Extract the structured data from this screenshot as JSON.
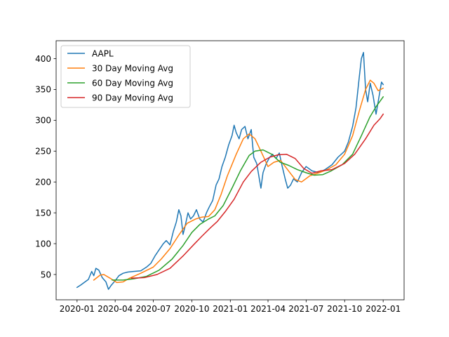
{
  "chart_data": {
    "type": "line",
    "title": "",
    "xlabel": "",
    "ylabel": "",
    "x_tick_labels": [
      "2020-01",
      "2020-04",
      "2020-07",
      "2020-10",
      "2021-01",
      "2021-04",
      "2021-07",
      "2021-10",
      "2022-01"
    ],
    "y_ticks": [
      50,
      100,
      150,
      200,
      250,
      300,
      350,
      400
    ],
    "xlim": [
      "2019-11-12",
      "2022-02-20"
    ],
    "ylim": [
      9,
      429
    ],
    "grid": false,
    "legend_position": "upper left",
    "series": [
      {
        "name": "AAPL",
        "color": "#1f77b4",
        "points": [
          [
            "2020-01-01",
            29
          ],
          [
            "2020-01-10",
            33
          ],
          [
            "2020-01-20",
            38
          ],
          [
            "2020-01-28",
            42
          ],
          [
            "2020-02-05",
            55
          ],
          [
            "2020-02-10",
            48
          ],
          [
            "2020-02-15",
            60
          ],
          [
            "2020-02-22",
            57
          ],
          [
            "2020-03-01",
            45
          ],
          [
            "2020-03-10",
            38
          ],
          [
            "2020-03-16",
            26
          ],
          [
            "2020-03-22",
            32
          ],
          [
            "2020-04-01",
            40
          ],
          [
            "2020-04-10",
            48
          ],
          [
            "2020-04-20",
            52
          ],
          [
            "2020-05-01",
            54
          ],
          [
            "2020-05-15",
            55
          ],
          [
            "2020-06-01",
            56
          ],
          [
            "2020-06-15",
            62
          ],
          [
            "2020-06-25",
            68
          ],
          [
            "2020-07-05",
            80
          ],
          [
            "2020-07-15",
            90
          ],
          [
            "2020-07-25",
            100
          ],
          [
            "2020-08-01",
            105
          ],
          [
            "2020-08-10",
            98
          ],
          [
            "2020-08-18",
            120
          ],
          [
            "2020-08-25",
            135
          ],
          [
            "2020-08-31",
            155
          ],
          [
            "2020-09-05",
            145
          ],
          [
            "2020-09-10",
            115
          ],
          [
            "2020-09-15",
            128
          ],
          [
            "2020-09-22",
            150
          ],
          [
            "2020-09-28",
            140
          ],
          [
            "2020-10-05",
            145
          ],
          [
            "2020-10-12",
            155
          ],
          [
            "2020-10-20",
            140
          ],
          [
            "2020-10-28",
            135
          ],
          [
            "2020-11-05",
            150
          ],
          [
            "2020-11-12",
            160
          ],
          [
            "2020-11-20",
            170
          ],
          [
            "2020-11-28",
            195
          ],
          [
            "2020-12-05",
            205
          ],
          [
            "2020-12-12",
            225
          ],
          [
            "2020-12-20",
            240
          ],
          [
            "2020-12-28",
            260
          ],
          [
            "2021-01-05",
            275
          ],
          [
            "2021-01-10",
            292
          ],
          [
            "2021-01-15",
            280
          ],
          [
            "2021-01-22",
            270
          ],
          [
            "2021-01-28",
            285
          ],
          [
            "2021-02-05",
            290
          ],
          [
            "2021-02-12",
            270
          ],
          [
            "2021-02-20",
            285
          ],
          [
            "2021-02-26",
            240
          ],
          [
            "2021-03-05",
            230
          ],
          [
            "2021-03-10",
            210
          ],
          [
            "2021-03-15",
            190
          ],
          [
            "2021-03-20",
            215
          ],
          [
            "2021-03-28",
            230
          ],
          [
            "2021-04-05",
            240
          ],
          [
            "2021-04-12",
            245
          ],
          [
            "2021-04-20",
            238
          ],
          [
            "2021-04-28",
            247
          ],
          [
            "2021-05-05",
            225
          ],
          [
            "2021-05-12",
            205
          ],
          [
            "2021-05-18",
            190
          ],
          [
            "2021-05-25",
            195
          ],
          [
            "2021-06-01",
            205
          ],
          [
            "2021-06-10",
            200
          ],
          [
            "2021-06-20",
            215
          ],
          [
            "2021-07-01",
            225
          ],
          [
            "2021-07-15",
            218
          ],
          [
            "2021-08-01",
            215
          ],
          [
            "2021-08-15",
            220
          ],
          [
            "2021-09-01",
            228
          ],
          [
            "2021-09-15",
            240
          ],
          [
            "2021-10-01",
            250
          ],
          [
            "2021-10-10",
            265
          ],
          [
            "2021-10-20",
            290
          ],
          [
            "2021-10-28",
            320
          ],
          [
            "2021-11-05",
            370
          ],
          [
            "2021-11-10",
            400
          ],
          [
            "2021-11-15",
            410
          ],
          [
            "2021-11-20",
            350
          ],
          [
            "2021-11-25",
            330
          ],
          [
            "2021-12-01",
            360
          ],
          [
            "2021-12-08",
            340
          ],
          [
            "2021-12-15",
            310
          ],
          [
            "2021-12-20",
            330
          ],
          [
            "2021-12-25",
            350
          ],
          [
            "2021-12-28",
            362
          ],
          [
            "2022-01-01",
            358
          ]
        ]
      },
      {
        "name": "30 Day Moving Avg",
        "color": "#ff7f0e",
        "points": [
          [
            "2020-02-10",
            41
          ],
          [
            "2020-02-25",
            49
          ],
          [
            "2020-03-05",
            50
          ],
          [
            "2020-03-20",
            44
          ],
          [
            "2020-04-05",
            37
          ],
          [
            "2020-04-20",
            38
          ],
          [
            "2020-05-05",
            44
          ],
          [
            "2020-06-01",
            52
          ],
          [
            "2020-07-01",
            62
          ],
          [
            "2020-07-20",
            75
          ],
          [
            "2020-08-10",
            92
          ],
          [
            "2020-09-01",
            115
          ],
          [
            "2020-09-20",
            133
          ],
          [
            "2020-10-10",
            140
          ],
          [
            "2020-10-25",
            143
          ],
          [
            "2020-11-10",
            144
          ],
          [
            "2020-11-25",
            155
          ],
          [
            "2020-12-10",
            180
          ],
          [
            "2020-12-25",
            210
          ],
          [
            "2021-01-15",
            245
          ],
          [
            "2021-02-01",
            270
          ],
          [
            "2021-02-15",
            278
          ],
          [
            "2021-03-01",
            270
          ],
          [
            "2021-03-15",
            250
          ],
          [
            "2021-04-01",
            225
          ],
          [
            "2021-04-15",
            232
          ],
          [
            "2021-05-01",
            235
          ],
          [
            "2021-05-20",
            218
          ],
          [
            "2021-06-05",
            204
          ],
          [
            "2021-06-20",
            200
          ],
          [
            "2021-07-10",
            210
          ],
          [
            "2021-08-01",
            215
          ],
          [
            "2021-08-20",
            220
          ],
          [
            "2021-09-10",
            228
          ],
          [
            "2021-10-01",
            245
          ],
          [
            "2021-10-20",
            275
          ],
          [
            "2021-11-05",
            315
          ],
          [
            "2021-11-20",
            350
          ],
          [
            "2021-12-01",
            365
          ],
          [
            "2021-12-10",
            360
          ],
          [
            "2021-12-20",
            348
          ],
          [
            "2022-01-01",
            352
          ]
        ]
      },
      {
        "name": "60 Day Moving Avg",
        "color": "#2ca02c",
        "points": [
          [
            "2020-03-25",
            41
          ],
          [
            "2020-04-20",
            41
          ],
          [
            "2020-05-15",
            43
          ],
          [
            "2020-06-15",
            47
          ],
          [
            "2020-07-15",
            57
          ],
          [
            "2020-08-15",
            75
          ],
          [
            "2020-09-10",
            97
          ],
          [
            "2020-10-01",
            118
          ],
          [
            "2020-10-20",
            131
          ],
          [
            "2020-11-10",
            140
          ],
          [
            "2020-11-25",
            145
          ],
          [
            "2020-12-15",
            162
          ],
          [
            "2021-01-05",
            190
          ],
          [
            "2021-01-25",
            218
          ],
          [
            "2021-02-15",
            243
          ],
          [
            "2021-03-01",
            250
          ],
          [
            "2021-03-20",
            252
          ],
          [
            "2021-04-10",
            245
          ],
          [
            "2021-04-30",
            232
          ],
          [
            "2021-05-20",
            227
          ],
          [
            "2021-06-10",
            220
          ],
          [
            "2021-07-01",
            215
          ],
          [
            "2021-07-20",
            211
          ],
          [
            "2021-08-10",
            212
          ],
          [
            "2021-08-30",
            218
          ],
          [
            "2021-09-25",
            228
          ],
          [
            "2021-10-20",
            245
          ],
          [
            "2021-11-10",
            275
          ],
          [
            "2021-11-30",
            305
          ],
          [
            "2021-12-15",
            322
          ],
          [
            "2022-01-01",
            338
          ]
        ]
      },
      {
        "name": "90 Day Moving Avg",
        "color": "#d62728",
        "points": [
          [
            "2020-05-10",
            44
          ],
          [
            "2020-06-10",
            45
          ],
          [
            "2020-07-10",
            50
          ],
          [
            "2020-08-10",
            60
          ],
          [
            "2020-09-10",
            80
          ],
          [
            "2020-10-05",
            98
          ],
          [
            "2020-10-25",
            112
          ],
          [
            "2020-11-15",
            126
          ],
          [
            "2020-12-01",
            136
          ],
          [
            "2020-12-20",
            152
          ],
          [
            "2021-01-10",
            172
          ],
          [
            "2021-02-01",
            200
          ],
          [
            "2021-02-20",
            217
          ],
          [
            "2021-03-15",
            232
          ],
          [
            "2021-04-05",
            240
          ],
          [
            "2021-04-25",
            244
          ],
          [
            "2021-05-15",
            245
          ],
          [
            "2021-06-05",
            238
          ],
          [
            "2021-06-25",
            222
          ],
          [
            "2021-07-15",
            214
          ],
          [
            "2021-08-05",
            218
          ],
          [
            "2021-09-01",
            220
          ],
          [
            "2021-10-01",
            230
          ],
          [
            "2021-10-25",
            245
          ],
          [
            "2021-11-20",
            270
          ],
          [
            "2021-12-10",
            292
          ],
          [
            "2021-12-25",
            303
          ],
          [
            "2022-01-01",
            310
          ]
        ]
      }
    ]
  }
}
